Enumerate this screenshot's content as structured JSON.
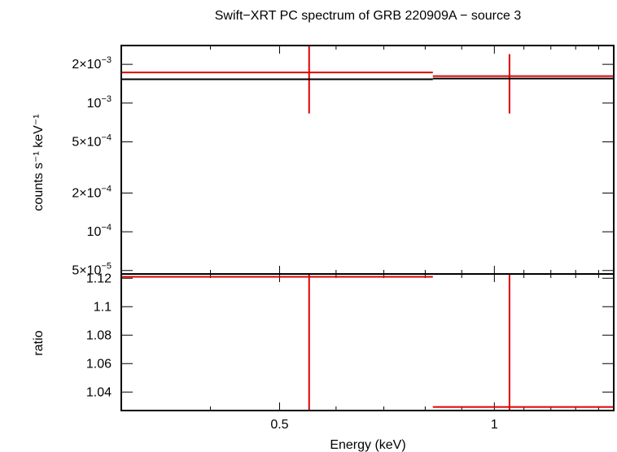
{
  "chart_data": [
    {
      "type": "scatter",
      "panel": "spectrum",
      "title": "Swift−XRT PC spectrum of GRB 220909A − source 3",
      "xlabel": "Energy (keV)",
      "ylabel": "counts s⁻¹ keV⁻¹",
      "xscale": "log",
      "yscale": "log",
      "xlim": [
        0.3,
        1.47
      ],
      "ylim": [
        4.7e-05,
        0.0028
      ],
      "x_ticks": [
        {
          "value": 0.5,
          "label": "0.5"
        },
        {
          "value": 1,
          "label": "1"
        }
      ],
      "y_ticks": [
        {
          "value": 5e-05,
          "mant": "5×10",
          "exp": "−5"
        },
        {
          "value": 0.0001,
          "mant": "10",
          "exp": "−4"
        },
        {
          "value": 0.0002,
          "mant": "2×10",
          "exp": "−4"
        },
        {
          "value": 0.0005,
          "mant": "5×10",
          "exp": "−4"
        },
        {
          "value": 0.001,
          "mant": "10",
          "exp": "−3"
        },
        {
          "value": 0.002,
          "mant": "2×10",
          "exp": "−3"
        }
      ],
      "series": [
        {
          "kind": "data",
          "color": "#e00000",
          "points": [
            {
              "x": 0.55,
              "xlo": 0.3,
              "xhi": 0.82,
              "y": 0.00173,
              "ylo": 0.00083,
              "yhi": 0.0028
            },
            {
              "x": 1.05,
              "xlo": 0.82,
              "xhi": 1.47,
              "y": 0.00162,
              "ylo": 0.00083,
              "yhi": 0.0024
            }
          ]
        },
        {
          "kind": "model",
          "color": "#000000",
          "steps": [
            {
              "xlo": 0.3,
              "xhi": 0.82,
              "y": 0.00153
            },
            {
              "xlo": 0.82,
              "xhi": 1.47,
              "y": 0.00155
            }
          ]
        }
      ]
    },
    {
      "type": "scatter",
      "panel": "ratio",
      "xlabel": "Energy (keV)",
      "ylabel": "ratio",
      "xscale": "log",
      "yscale": "linear",
      "xlim": [
        0.3,
        1.47
      ],
      "ylim": [
        1.027,
        1.123
      ],
      "x_ticks": [
        {
          "value": 0.5,
          "label": "0.5"
        },
        {
          "value": 1,
          "label": "1"
        }
      ],
      "y_ticks": [
        {
          "value": 1.04,
          "label": "1.04"
        },
        {
          "value": 1.06,
          "label": "1.06"
        },
        {
          "value": 1.08,
          "label": "1.08"
        },
        {
          "value": 1.1,
          "label": "1.1"
        },
        {
          "value": 1.12,
          "label": "1.12"
        }
      ],
      "series": [
        {
          "kind": "data",
          "color": "#e00000",
          "points": [
            {
              "x": 0.55,
              "xlo": 0.3,
              "xhi": 0.82,
              "y": 1.121,
              "ylo": 1.027,
              "yhi": 1.123
            },
            {
              "x": 1.05,
              "xlo": 0.82,
              "xhi": 1.47,
              "y": 1.0295,
              "ylo": 1.027,
              "yhi": 1.123
            }
          ]
        }
      ]
    }
  ]
}
